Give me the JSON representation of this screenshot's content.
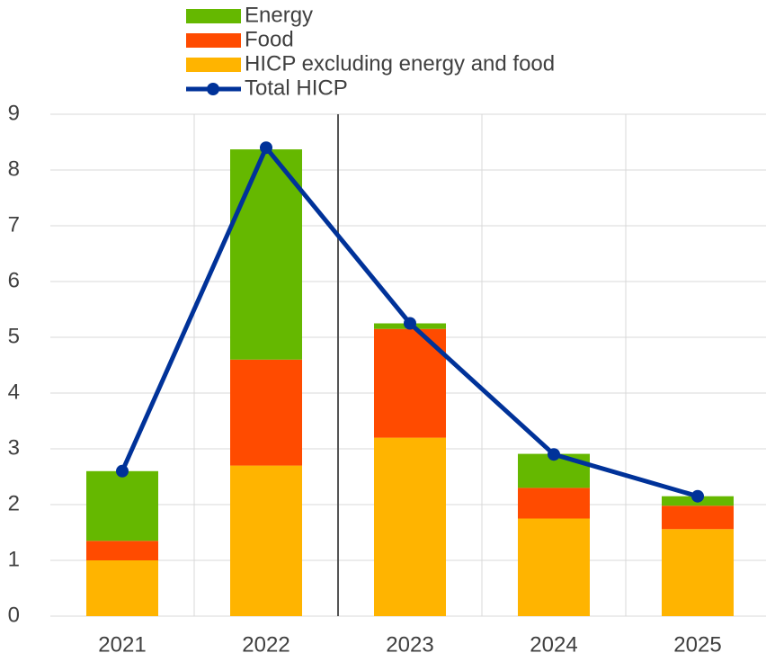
{
  "chart_data": {
    "type": "bar",
    "stacked": true,
    "grid": true,
    "categories": [
      "2021",
      "2022",
      "2023",
      "2024",
      "2025"
    ],
    "ylim": [
      0,
      9
    ],
    "yticks": [
      0,
      1,
      2,
      3,
      4,
      5,
      6,
      7,
      8,
      9
    ],
    "series": [
      {
        "name": "Energy",
        "color": "#65b800",
        "values": [
          1.25,
          3.77,
          0.1,
          0.61,
          0.17
        ]
      },
      {
        "name": "Food",
        "color": "#ff4b00",
        "values": [
          0.35,
          1.9,
          1.95,
          0.55,
          0.42
        ]
      },
      {
        "name": "HICP excluding energy and food",
        "color": "#ffb400",
        "values": [
          1.0,
          2.7,
          3.2,
          1.75,
          1.56
        ]
      },
      {
        "name": "Total HICP",
        "type": "line",
        "color": "#003299",
        "values": [
          2.6,
          8.4,
          5.25,
          2.9,
          2.15
        ]
      }
    ]
  }
}
